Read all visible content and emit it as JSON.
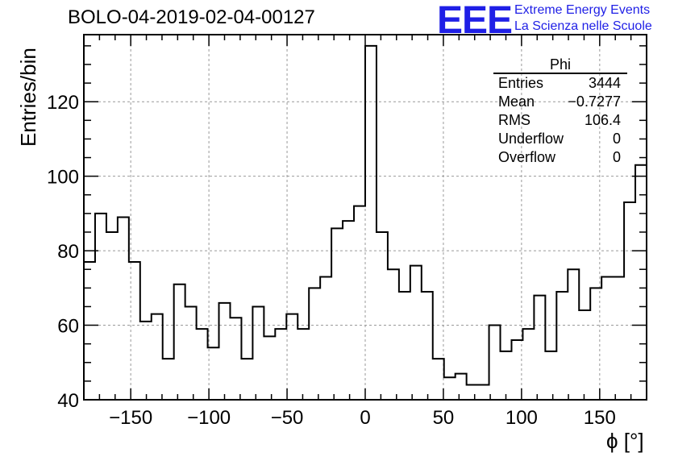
{
  "title": "BOLO-04-2019-02-04-00127",
  "logo": {
    "mark": "EEE",
    "line1": "Extreme Energy Events",
    "line2": "La Scienza nelle Scuole",
    "color": "#1f1fe6"
  },
  "stats_box": {
    "title": "Phi",
    "rows": [
      {
        "label": "Entries",
        "value": "3444"
      },
      {
        "label": "Mean",
        "value": "−0.7277"
      },
      {
        "label": "RMS",
        "value": "106.4"
      },
      {
        "label": "Underflow",
        "value": "0"
      },
      {
        "label": "Overflow",
        "value": "0"
      }
    ]
  },
  "chart_data": {
    "type": "histogram",
    "title": "BOLO-04-2019-02-04-00127",
    "xlabel": "ϕ [°]",
    "ylabel": "Entries/bin",
    "xlim": [
      -180,
      180
    ],
    "ylim": [
      40,
      138
    ],
    "bin_width": 7.2,
    "bin_start": -180,
    "grid": true,
    "xticks": [
      -150,
      -100,
      -50,
      0,
      50,
      100,
      150
    ],
    "xtick_labels": [
      "−150",
      "−100",
      "−50",
      "0",
      "50",
      "100",
      "150"
    ],
    "yticks": [
      40,
      60,
      80,
      100,
      120
    ],
    "yticks_minor_step": 5,
    "xticks_minor_step": 10,
    "values": [
      77,
      90,
      85,
      89,
      77,
      61,
      63,
      51,
      71,
      65,
      59,
      54,
      66,
      62,
      51,
      65,
      57,
      59,
      63,
      59,
      70,
      73,
      86,
      88,
      92,
      135,
      85,
      75,
      69,
      76,
      69,
      51,
      46,
      47,
      44,
      44,
      60,
      53,
      56,
      59,
      68,
      53,
      69,
      75,
      64,
      70,
      73,
      73,
      93,
      103
    ]
  }
}
